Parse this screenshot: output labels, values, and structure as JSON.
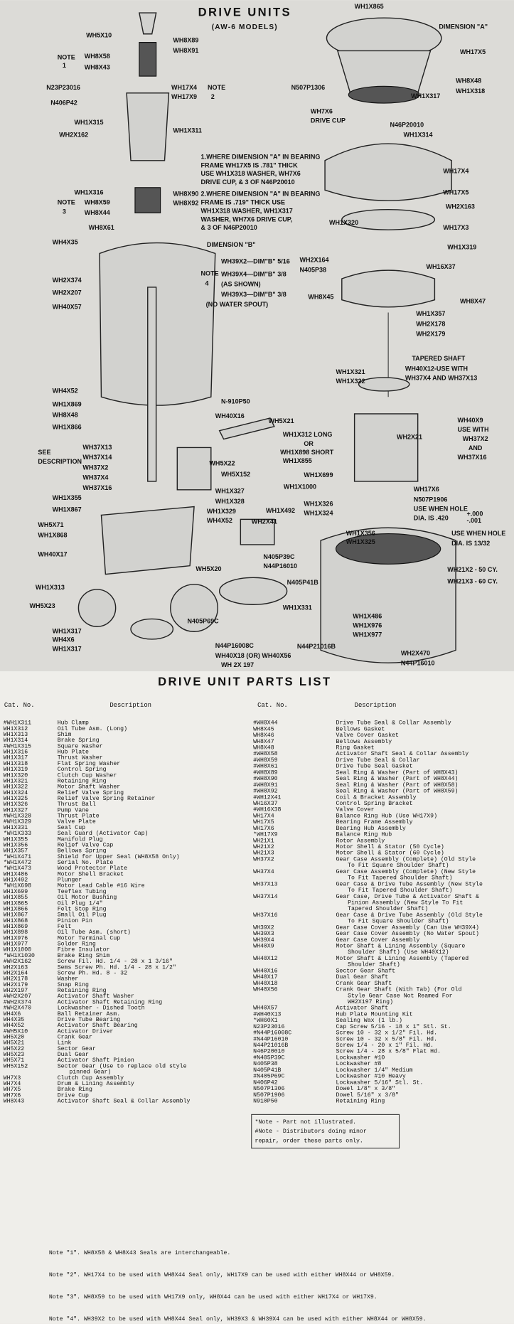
{
  "diagram": {
    "title": "DRIVE UNITS",
    "subtitle": "(AW-6 MODELS)",
    "labels": [
      "WH1X865",
      "DIMENSION \"A\"",
      "WH5X10",
      "WH8X89",
      "WH8X91",
      "NOTE",
      "1",
      "WH8X58",
      "WH8X43",
      "WH17X5",
      "WH8X48",
      "WH1X318",
      "WH1X317",
      "N23P23016",
      "N406P42",
      "WH17X4",
      "WH17X9",
      "NOTE",
      "2",
      "N507P1306",
      "WH7X6",
      "DRIVE CUP",
      "N46P20010",
      "WH1X315",
      "WH2X162",
      "WH1X311",
      "WH1X314",
      "WH17X4",
      "WH1X316",
      "WH8X59",
      "WH8X44",
      "NOTE",
      "3",
      "WH8X90",
      "WH8X92",
      "WH17X5",
      "WH2X163",
      "WH17X3",
      "WH8X61",
      "WH4X35",
      "DIMENSION \"B\"",
      "WH1X320",
      "WH1X319",
      "WH2X164",
      "N405P38",
      "WH16X37",
      "NOTE",
      "4",
      "WH39X2—DIM\"B\" 5/16",
      "WH39X4—DIM\"B\" 3/8",
      "(AS SHOWN)",
      "WH39X3—DIM\"B\" 3/8",
      "(NO WATER SPOUT)",
      "WH2X374",
      "WH2X207",
      "WH8X45",
      "WH8X47",
      "WH40X57",
      "WH1X357",
      "WH2X178",
      "WH2X179",
      "TAPERED SHAFT",
      "WH1X321",
      "WH1X322",
      "WH40X12-USE WITH",
      "WH37X4 AND WH37X13",
      "WH4X52",
      "N-910P50",
      "WH1X869",
      "WH8X48",
      "WH40X16",
      "WH5X21",
      "WH1X866",
      "WH40X9",
      "USE WITH",
      "WH37X2",
      "AND",
      "WH37X16",
      "WH1X312 LONG",
      "OR",
      "WH1X898 SHORT",
      "WH1X855",
      "WH2X21",
      "SEE",
      "DESCRIPTION",
      "WH37X13",
      "WH37X14",
      "WH37X2",
      "WH37X4",
      "WH37X16",
      "WH5X22",
      "WH5X152",
      "WH1X699",
      "WH1X1000",
      "WH1X355",
      "WH1X867",
      "WH1X327",
      "WH1X328",
      "WH17X6",
      "N507P1906",
      "USE WHEN HOLE",
      "DIA. IS .420",
      "WH1X326",
      "WH1X324",
      "WH5X71",
      "WH1X868",
      "WH1X329",
      "WH4X52",
      "WH1X492",
      "WH2X41",
      "WH1X356",
      "WH1X325",
      "USE WHEN HOLE",
      "DIA. IS 13/32",
      "WH40X17",
      "N405P39C",
      "N44P16010",
      "WH21X2 - 50 CY.",
      "WH21X3 - 60 CY.",
      "WH5X20",
      "N405P41B",
      "WH1X313",
      "WH5X23",
      "WH1X331",
      "WH1X486",
      "WH1X976",
      "WH1X977",
      "N405P69C",
      "WH1X317",
      "WH4X6",
      "WH1X317",
      "N44P16008C",
      "N44P21016B",
      "WH40X18 (OR) WH40X56",
      "WH 2X 197",
      "WH2X470",
      "N44P16010",
      "+.000",
      "-.001"
    ],
    "notes": [
      [
        "1.WHERE DIMENSION \"A\" IN BEARING",
        "FRAME WH17X5 IS .781\" THICK",
        "USE WH1X318 WASHER, WH7X6",
        "DRIVE CUP, & 3 OF N46P20010"
      ],
      [
        "2.WHERE DIMENSION \"A\" IN BEARING",
        "FRAME IS .719\" THICK USE",
        "WH1X318 WASHER, WH1X317",
        "WASHER, WH7X6 DRIVE CUP,",
        "& 3 OF N46P20010"
      ]
    ]
  },
  "parts_list": {
    "title": "DRIVE UNIT PARTS LIST",
    "headers": {
      "cat_no": "Cat. No.",
      "description": "Description"
    },
    "left": [
      {
        "cat": "#WH1X311",
        "desc": [
          "Hub Clamp"
        ]
      },
      {
        "cat": "WH1X312",
        "desc": [
          "Oil Tube Asm. (Long)"
        ]
      },
      {
        "cat": "WH1X313",
        "desc": [
          "Shim"
        ]
      },
      {
        "cat": "WH1X314",
        "desc": [
          "Brake Spring"
        ]
      },
      {
        "cat": "#WH1X315",
        "desc": [
          "Square Washer"
        ]
      },
      {
        "cat": "WH1X316",
        "desc": [
          "Hub Plate"
        ]
      },
      {
        "cat": "WH1X317",
        "desc": [
          "Thrust Washer"
        ]
      },
      {
        "cat": "WH1X318",
        "desc": [
          "Flat Spring Washer"
        ]
      },
      {
        "cat": "WH1X319",
        "desc": [
          "Control Spring"
        ]
      },
      {
        "cat": "WH1X320",
        "desc": [
          "Clutch Cup Washer"
        ]
      },
      {
        "cat": "WH1X321",
        "desc": [
          "Retaining Ring"
        ]
      },
      {
        "cat": "WH1X322",
        "desc": [
          "Motor Shaft Washer"
        ]
      },
      {
        "cat": "WH1X324",
        "desc": [
          "Relief Valve Spring"
        ]
      },
      {
        "cat": "WH1X325",
        "desc": [
          "Relief Valve Spring Retainer"
        ]
      },
      {
        "cat": "WH1X326",
        "desc": [
          "Thrust Ball"
        ]
      },
      {
        "cat": "WH1X327",
        "desc": [
          "Pump Vane"
        ]
      },
      {
        "cat": "#WH1X328",
        "desc": [
          "Thrust Plate"
        ]
      },
      {
        "cat": "#WH1X329",
        "desc": [
          "Valve Plate"
        ]
      },
      {
        "cat": "WH1X331",
        "desc": [
          "Seal Cup"
        ]
      },
      {
        "cat": "*WH1X333",
        "desc": [
          "Seal Guard (Activator Cap)"
        ]
      },
      {
        "cat": "WH1X355",
        "desc": [
          "Manifold Plug"
        ]
      },
      {
        "cat": "WH1X356",
        "desc": [
          "Relief Valve Cap"
        ]
      },
      {
        "cat": "WH1X357",
        "desc": [
          "Bellows Spring"
        ]
      },
      {
        "cat": "*WH1X471",
        "desc": [
          "Shield for Upper Seal (WH8X58 Only)"
        ]
      },
      {
        "cat": "*WH1X472",
        "desc": [
          "Serial No. Plate"
        ]
      },
      {
        "cat": "*WH1X473",
        "desc": [
          "Wood Protector Plate"
        ]
      },
      {
        "cat": "WH1X486",
        "desc": [
          "Motor Shell Bracket"
        ]
      },
      {
        "cat": "WH1X492",
        "desc": [
          "Plunger"
        ]
      },
      {
        "cat": "*WH1X698",
        "desc": [
          "Motor Lead Cable #16 Wire"
        ]
      },
      {
        "cat": "WH1X699",
        "desc": [
          "Teeflex Tubing"
        ]
      },
      {
        "cat": "WH1X855",
        "desc": [
          "Oil Motor Bushing"
        ]
      },
      {
        "cat": "WH1X865",
        "desc": [
          "Oil Plug 1/4\""
        ]
      },
      {
        "cat": "WH1X866",
        "desc": [
          "Felt Stop Ring"
        ]
      },
      {
        "cat": "WH1X867",
        "desc": [
          "Small Oil Plug"
        ]
      },
      {
        "cat": "WH1X868",
        "desc": [
          "Pinion Pin"
        ]
      },
      {
        "cat": "WH1X869",
        "desc": [
          "Felt"
        ]
      },
      {
        "cat": "WH1X898",
        "desc": [
          "Oil Tube Asm. (short)"
        ]
      },
      {
        "cat": "WH1X976",
        "desc": [
          "Motor Terminal Cup"
        ]
      },
      {
        "cat": "WH1X977",
        "desc": [
          "Solder Ring"
        ]
      },
      {
        "cat": "WH1X1000",
        "desc": [
          "Fibre Insulator"
        ]
      },
      {
        "cat": "*WH1X1030",
        "desc": [
          "Brake Ring Shim"
        ]
      },
      {
        "cat": "#WH2X162",
        "desc": [
          "Screw Fil. Hd. 1/4 - 28 x 1 3/16\""
        ]
      },
      {
        "cat": "WH2X163",
        "desc": [
          "Sems Screw Ph. Hd. 1/4 - 28 x 1/2\""
        ]
      },
      {
        "cat": "WH2X164",
        "desc": [
          "Screw Ph. Hd. 8 - 32"
        ]
      },
      {
        "cat": "WH2X178",
        "desc": [
          "Washer"
        ]
      },
      {
        "cat": "WH2X179",
        "desc": [
          "Snap Ring"
        ]
      },
      {
        "cat": "WH2X197",
        "desc": [
          "Retaining Ring"
        ]
      },
      {
        "cat": "#WH2X207",
        "desc": [
          "Activator Shaft Washer"
        ]
      },
      {
        "cat": "#WH2X374",
        "desc": [
          "Activator Shaft Retaining Ring"
        ]
      },
      {
        "cat": "#WH2X470",
        "desc": [
          "Lockwasher - Dished Tooth"
        ]
      },
      {
        "cat": "WH4X6",
        "desc": [
          "Ball Retainer Asm."
        ]
      },
      {
        "cat": "WH4X35",
        "desc": [
          "Drive Tube Bearing"
        ]
      },
      {
        "cat": "WH4X52",
        "desc": [
          "Activator Shaft Bearing"
        ]
      },
      {
        "cat": "#WH5X10",
        "desc": [
          "Activator Driver"
        ]
      },
      {
        "cat": "WH5X20",
        "desc": [
          "Crank Gear"
        ]
      },
      {
        "cat": "WH5X21",
        "desc": [
          "Link"
        ]
      },
      {
        "cat": "WH5X22",
        "desc": [
          "Sector Gear"
        ]
      },
      {
        "cat": "WH5X23",
        "desc": [
          "Dual Gear"
        ]
      },
      {
        "cat": "WH5X71",
        "desc": [
          "Activator Shaft Pinion"
        ]
      },
      {
        "cat": "WH5X152",
        "desc": [
          "Sector Gear (Use to replace old style",
          "pinned Gear)"
        ]
      },
      {
        "cat": "WH7X3",
        "desc": [
          "Clutch Cup Assembly"
        ]
      },
      {
        "cat": "WH7X4",
        "desc": [
          "Drum & Lining Assembly"
        ]
      },
      {
        "cat": "WH7X5",
        "desc": [
          "Brake Ring"
        ]
      },
      {
        "cat": "WH7X6",
        "desc": [
          "Drive Cup"
        ]
      },
      {
        "cat": "WH8X43",
        "desc": [
          "Activator Shaft Seal & Collar Assembly"
        ]
      }
    ],
    "right": [
      {
        "cat": "#WH8X44",
        "desc": [
          "Drive Tube Seal & Collar Assembly"
        ]
      },
      {
        "cat": "WH8X45",
        "desc": [
          "Bellows Gasket"
        ]
      },
      {
        "cat": "WH8X46",
        "desc": [
          "Valve Cover Gasket"
        ]
      },
      {
        "cat": "WH8X47",
        "desc": [
          "Bellows Assembly"
        ]
      },
      {
        "cat": "WH8X48",
        "desc": [
          "Ring Gasket"
        ]
      },
      {
        "cat": "#WH8X58",
        "desc": [
          "Activator Shaft Seal & Collar Assembly"
        ]
      },
      {
        "cat": "#WH8X59",
        "desc": [
          "Drive Tube Seal & Collar"
        ]
      },
      {
        "cat": "#WH8X61",
        "desc": [
          "Drive Tube Seal Gasket"
        ]
      },
      {
        "cat": "#WH8X89",
        "desc": [
          "Seal Ring & Washer (Part of WH8X43)"
        ]
      },
      {
        "cat": "#WH8X90",
        "desc": [
          "Seal Ring & Washer (Part of WH8X44)"
        ]
      },
      {
        "cat": "#WH8X91",
        "desc": [
          "Seal Ring & Washer (Part of WH8X58)"
        ]
      },
      {
        "cat": "#WH8X92",
        "desc": [
          "Seal Ring & Washer (Part of WH8X59)"
        ]
      },
      {
        "cat": "#WH12X41",
        "desc": [
          "Coil & Bracket Assembly"
        ]
      },
      {
        "cat": "WH16X37",
        "desc": [
          "Control Spring Bracket"
        ]
      },
      {
        "cat": "#WH16X38",
        "desc": [
          "Valve Cover"
        ]
      },
      {
        "cat": "WH17X4",
        "desc": [
          "Balance Ring Hub (Use WH17X9)"
        ]
      },
      {
        "cat": "WH17X5",
        "desc": [
          "Bearing Frame Assembly"
        ]
      },
      {
        "cat": "WH17X6",
        "desc": [
          "Bearing Hub Assembly"
        ]
      },
      {
        "cat": "*WH17X9",
        "desc": [
          "Balance Ring Hub"
        ]
      },
      {
        "cat": "WH21X1",
        "desc": [
          "Rotor Assembly"
        ]
      },
      {
        "cat": "WH21X2",
        "desc": [
          "Motor Shell & Stator (50 Cycle)"
        ]
      },
      {
        "cat": "WH21X3",
        "desc": [
          "Motor Shell & Stator (60 Cycle)"
        ]
      },
      {
        "cat": "WH37X2",
        "desc": [
          "Gear Case Assembly (Complete) (Old Style",
          "To Fit Square Shoulder Shaft)"
        ]
      },
      {
        "cat": "WH37X4",
        "desc": [
          "Gear Case Assembly (Complete) (New Style",
          "To Fit Tapered Shoulder Shaft)"
        ]
      },
      {
        "cat": "WH37X13",
        "desc": [
          "Gear Case & Drive Tube Assembly (New Style",
          "To Fit Tapered Shoulder Shaft)"
        ]
      },
      {
        "cat": "WH37X14",
        "desc": [
          "Gear Case, Drive Tube & Activator Shaft &",
          "Pinion Assembly (New Style To Fit",
          "Tapered Shoulder Shaft)"
        ]
      },
      {
        "cat": "WH37X16",
        "desc": [
          "Gear Case & Drive Tube Assembly (Old Style",
          "To Fit Square Shoulder Shaft)"
        ]
      },
      {
        "cat": "WH39X2",
        "desc": [
          "Gear Case Cover Assembly (Can Use WH39X4)"
        ]
      },
      {
        "cat": "WH39X3",
        "desc": [
          "Gear Case Cover Assembly (No Water Spout)"
        ]
      },
      {
        "cat": "WH39X4",
        "desc": [
          "Gear Case Cover Assembly"
        ]
      },
      {
        "cat": "WH40X9",
        "desc": [
          "Motor Shaft & Lining Assembly (Square",
          "Shoulder Shaft) (Use WH40X12)"
        ]
      },
      {
        "cat": "WH40X12",
        "desc": [
          "Motor Shaft & Lining Assembly (Tapered",
          "Shoulder Shaft)"
        ]
      },
      {
        "cat": "WH40X16",
        "desc": [
          "Sector Gear Shaft"
        ]
      },
      {
        "cat": "WH40X17",
        "desc": [
          "Dual Gear Shaft"
        ]
      },
      {
        "cat": "WH40X18",
        "desc": [
          "Crank Gear Shaft"
        ]
      },
      {
        "cat": "WH40X56",
        "desc": [
          "Crank Gear Shaft (With Tab) (For Old",
          "Style Gear Case Not Reamed For",
          "WH2X197 Ring)"
        ]
      },
      {
        "cat": "WH40X57",
        "desc": [
          "Activator Shaft"
        ]
      },
      {
        "cat": "#WH40X13",
        "desc": [
          "Hub Plate Mounting Kit"
        ]
      },
      {
        "cat": "*WH60X1",
        "desc": [
          "Sealing Wax (1 lb.)"
        ]
      },
      {
        "cat": "N23P23016",
        "desc": [
          "Cap Screw 5/16 - 18 x 1\" Stl. St."
        ]
      },
      {
        "cat": "#N44P16008C",
        "desc": [
          "Screw 10 - 32 x 1/2\" Fil. Hd."
        ]
      },
      {
        "cat": "#N44P16010",
        "desc": [
          "Screw 10 - 32 x 5/8\" Fil. Hd."
        ]
      },
      {
        "cat": "N44P21016B",
        "desc": [
          "Screw 1/4 - 20 x 1\" Fil. Hd."
        ]
      },
      {
        "cat": "N46P20010",
        "desc": [
          "Screw 1/4 - 28 x 5/8\" Flat Hd."
        ]
      },
      {
        "cat": "#N405P39C",
        "desc": [
          "Lockwasher #10"
        ]
      },
      {
        "cat": "N405P38",
        "desc": [
          "Lockwasher #8"
        ]
      },
      {
        "cat": "N405P41B",
        "desc": [
          "Lockwasher 1/4\" Medium"
        ]
      },
      {
        "cat": "#N405P69C",
        "desc": [
          "Lockwasher #10 Heavy"
        ]
      },
      {
        "cat": "N406P42",
        "desc": [
          "Lockwasher 5/16\" Stl. St."
        ]
      },
      {
        "cat": "N507P1306",
        "desc": [
          "Dowel 1/8\" x 3/8\""
        ]
      },
      {
        "cat": "N507P1906",
        "desc": [
          "Dowel 5/16\" x 3/8\""
        ]
      },
      {
        "cat": "N910P50",
        "desc": [
          "Retaining Ring"
        ]
      }
    ],
    "footnotes": [
      "*Note - Part not illustrated.",
      "#Note - Distributors doing minor",
      "repair, order these parts only."
    ],
    "notes": [
      "Note \"1\". WH8X58 & WH8X43 Seals are interchangeable.",
      "Note \"2\". WH17X4 to be used with WH8X44 Seal only, WH17X9 can be used with either WH8X44 or WH8X59.",
      "Note \"3\". WH8X59 to be used with WH17X9 only, WH8X44 can be used with either WH17X4 or WH17X9.",
      "Note \"4\". WH39X2 to be used with WH8X44 Seal only, WH39X3 & WH39X4 can be used with either WH8X44 or WH8X59."
    ]
  }
}
